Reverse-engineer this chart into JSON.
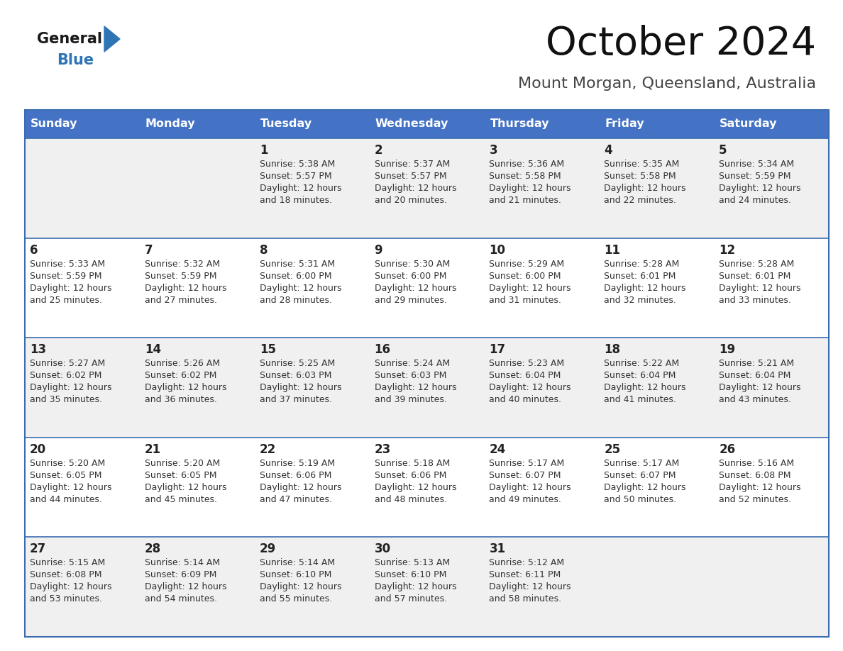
{
  "title": "October 2024",
  "subtitle": "Mount Morgan, Queensland, Australia",
  "header_bg": "#4472C4",
  "header_text_color": "#FFFFFF",
  "row_bg_light": "#F0F0F0",
  "row_bg_white": "#FFFFFF",
  "day_headers": [
    "Sunday",
    "Monday",
    "Tuesday",
    "Wednesday",
    "Thursday",
    "Friday",
    "Saturday"
  ],
  "grid_line_color": "#3A6CB0",
  "date_color": "#222222",
  "info_color": "#333333",
  "logo_general_color": "#1a1a1a",
  "logo_blue_color": "#2E75B6",
  "logo_triangle_color": "#2E75B6",
  "calendar_data": [
    [
      "",
      "",
      "1\nSunrise: 5:38 AM\nSunset: 5:57 PM\nDaylight: 12 hours\nand 18 minutes.",
      "2\nSunrise: 5:37 AM\nSunset: 5:57 PM\nDaylight: 12 hours\nand 20 minutes.",
      "3\nSunrise: 5:36 AM\nSunset: 5:58 PM\nDaylight: 12 hours\nand 21 minutes.",
      "4\nSunrise: 5:35 AM\nSunset: 5:58 PM\nDaylight: 12 hours\nand 22 minutes.",
      "5\nSunrise: 5:34 AM\nSunset: 5:59 PM\nDaylight: 12 hours\nand 24 minutes."
    ],
    [
      "6\nSunrise: 5:33 AM\nSunset: 5:59 PM\nDaylight: 12 hours\nand 25 minutes.",
      "7\nSunrise: 5:32 AM\nSunset: 5:59 PM\nDaylight: 12 hours\nand 27 minutes.",
      "8\nSunrise: 5:31 AM\nSunset: 6:00 PM\nDaylight: 12 hours\nand 28 minutes.",
      "9\nSunrise: 5:30 AM\nSunset: 6:00 PM\nDaylight: 12 hours\nand 29 minutes.",
      "10\nSunrise: 5:29 AM\nSunset: 6:00 PM\nDaylight: 12 hours\nand 31 minutes.",
      "11\nSunrise: 5:28 AM\nSunset: 6:01 PM\nDaylight: 12 hours\nand 32 minutes.",
      "12\nSunrise: 5:28 AM\nSunset: 6:01 PM\nDaylight: 12 hours\nand 33 minutes."
    ],
    [
      "13\nSunrise: 5:27 AM\nSunset: 6:02 PM\nDaylight: 12 hours\nand 35 minutes.",
      "14\nSunrise: 5:26 AM\nSunset: 6:02 PM\nDaylight: 12 hours\nand 36 minutes.",
      "15\nSunrise: 5:25 AM\nSunset: 6:03 PM\nDaylight: 12 hours\nand 37 minutes.",
      "16\nSunrise: 5:24 AM\nSunset: 6:03 PM\nDaylight: 12 hours\nand 39 minutes.",
      "17\nSunrise: 5:23 AM\nSunset: 6:04 PM\nDaylight: 12 hours\nand 40 minutes.",
      "18\nSunrise: 5:22 AM\nSunset: 6:04 PM\nDaylight: 12 hours\nand 41 minutes.",
      "19\nSunrise: 5:21 AM\nSunset: 6:04 PM\nDaylight: 12 hours\nand 43 minutes."
    ],
    [
      "20\nSunrise: 5:20 AM\nSunset: 6:05 PM\nDaylight: 12 hours\nand 44 minutes.",
      "21\nSunrise: 5:20 AM\nSunset: 6:05 PM\nDaylight: 12 hours\nand 45 minutes.",
      "22\nSunrise: 5:19 AM\nSunset: 6:06 PM\nDaylight: 12 hours\nand 47 minutes.",
      "23\nSunrise: 5:18 AM\nSunset: 6:06 PM\nDaylight: 12 hours\nand 48 minutes.",
      "24\nSunrise: 5:17 AM\nSunset: 6:07 PM\nDaylight: 12 hours\nand 49 minutes.",
      "25\nSunrise: 5:17 AM\nSunset: 6:07 PM\nDaylight: 12 hours\nand 50 minutes.",
      "26\nSunrise: 5:16 AM\nSunset: 6:08 PM\nDaylight: 12 hours\nand 52 minutes."
    ],
    [
      "27\nSunrise: 5:15 AM\nSunset: 6:08 PM\nDaylight: 12 hours\nand 53 minutes.",
      "28\nSunrise: 5:14 AM\nSunset: 6:09 PM\nDaylight: 12 hours\nand 54 minutes.",
      "29\nSunrise: 5:14 AM\nSunset: 6:10 PM\nDaylight: 12 hours\nand 55 minutes.",
      "30\nSunrise: 5:13 AM\nSunset: 6:10 PM\nDaylight: 12 hours\nand 57 minutes.",
      "31\nSunrise: 5:12 AM\nSunset: 6:11 PM\nDaylight: 12 hours\nand 58 minutes.",
      "",
      ""
    ]
  ]
}
